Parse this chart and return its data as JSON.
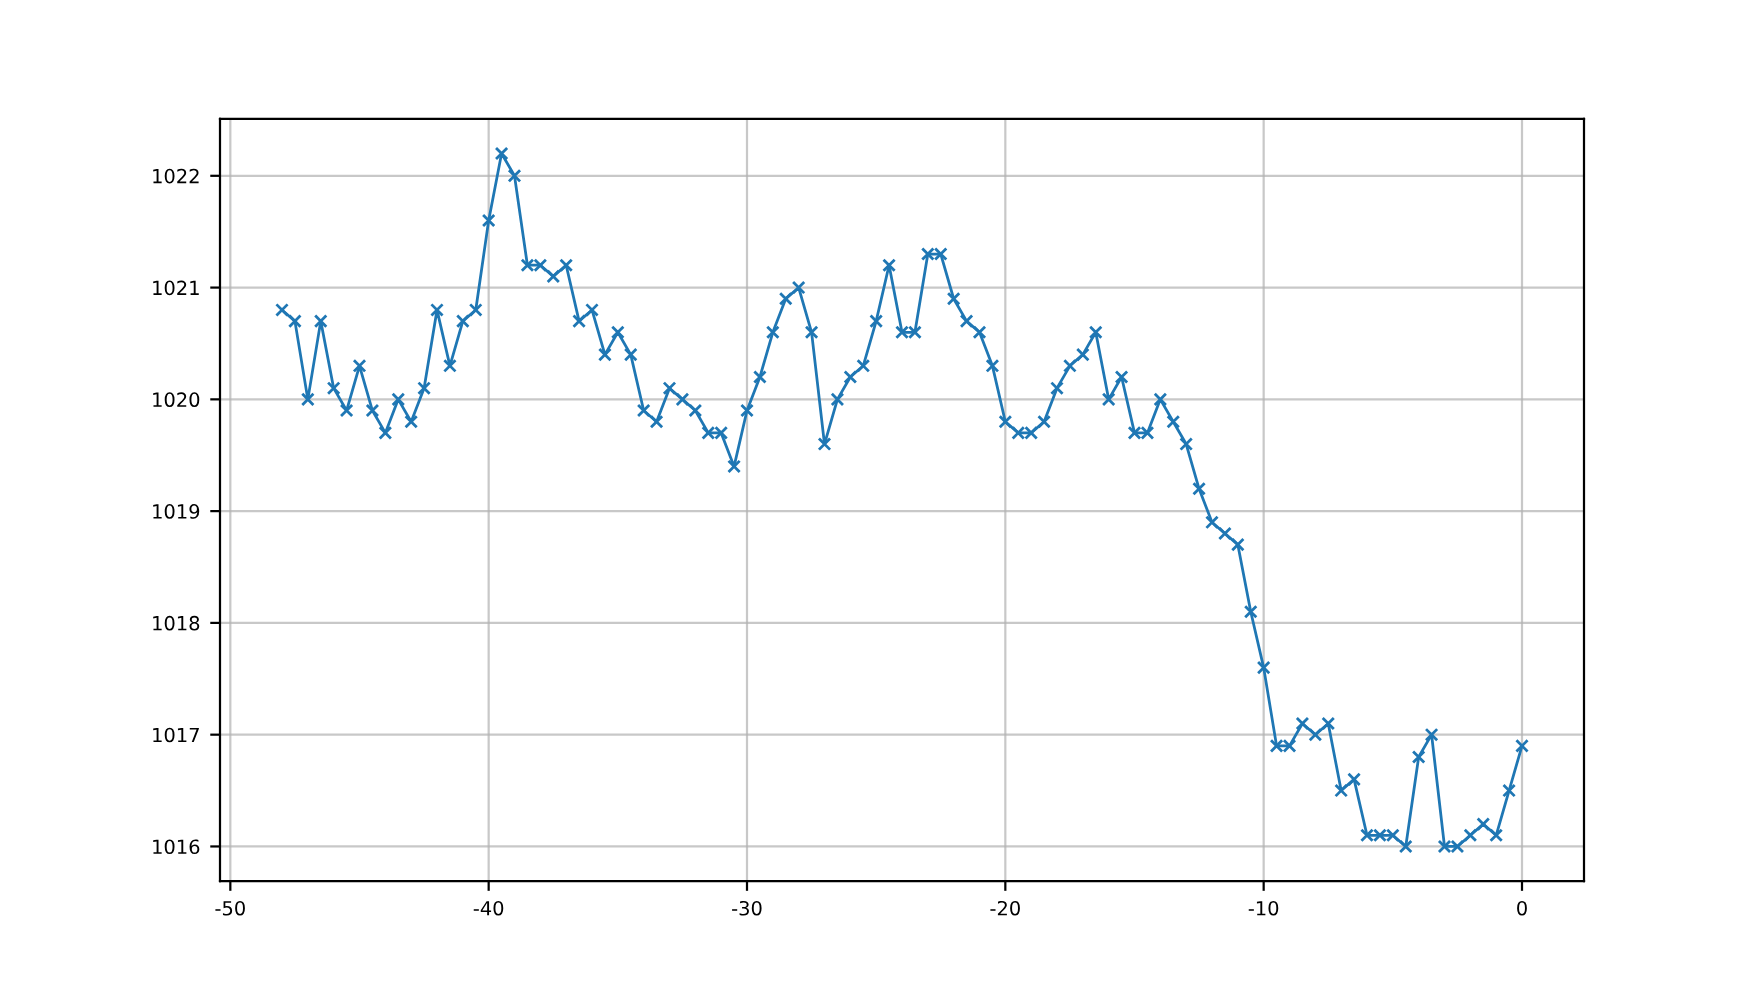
{
  "chart_data": {
    "type": "line",
    "color": "#1f77b4",
    "marker": "cross",
    "line_style": "solid",
    "grid": true,
    "x": [
      -48,
      -47.5,
      -47,
      -46.5,
      -46,
      -45.5,
      -45,
      -44.5,
      -44,
      -43.5,
      -43,
      -42.5,
      -42,
      -41.5,
      -41,
      -40.5,
      -40,
      -39.5,
      -39,
      -38.5,
      -38,
      -37.5,
      -37,
      -36.5,
      -36,
      -35.5,
      -35,
      -34.5,
      -34,
      -33.5,
      -33,
      -32.5,
      -32,
      -31.5,
      -31,
      -30.5,
      -30,
      -29.5,
      -29,
      -28.5,
      -28,
      -27.5,
      -27,
      -26.5,
      -26,
      -25.5,
      -25,
      -24.5,
      -24,
      -23.5,
      -23,
      -22.5,
      -22,
      -21.5,
      -21,
      -20.5,
      -20,
      -19.5,
      -19,
      -18.5,
      -18,
      -17.5,
      -17,
      -16.5,
      -16,
      -15.5,
      -15,
      -14.5,
      -14,
      -13.5,
      -13,
      -12.5,
      -12,
      -11.5,
      -11,
      -10.5,
      -10,
      -9.5,
      -9,
      -8.5,
      -8,
      -7.5,
      -7,
      -6.5,
      -6,
      -5.5,
      -5,
      -4.5,
      -4,
      -3.5,
      -3,
      -2.5,
      -2,
      -1.5,
      -1,
      -0.5,
      0
    ],
    "values": [
      1020.8,
      1020.7,
      1020.0,
      1020.7,
      1020.1,
      1019.9,
      1020.3,
      1019.9,
      1019.7,
      1020.0,
      1019.8,
      1020.1,
      1020.8,
      1020.3,
      1020.7,
      1020.8,
      1021.6,
      1022.2,
      1022.0,
      1021.2,
      1021.2,
      1021.1,
      1021.2,
      1020.7,
      1020.8,
      1020.4,
      1020.6,
      1020.4,
      1019.9,
      1019.8,
      1020.1,
      1020.0,
      1019.9,
      1019.7,
      1019.7,
      1019.4,
      1019.9,
      1020.2,
      1020.6,
      1020.9,
      1021.0,
      1020.6,
      1019.6,
      1020.0,
      1020.2,
      1020.3,
      1020.7,
      1021.2,
      1020.6,
      1020.6,
      1021.3,
      1021.3,
      1020.9,
      1020.7,
      1020.6,
      1020.3,
      1019.8,
      1019.7,
      1019.7,
      1019.8,
      1020.1,
      1020.3,
      1020.4,
      1020.6,
      1020.0,
      1020.2,
      1019.7,
      1019.7,
      1020.0,
      1019.8,
      1019.6,
      1019.2,
      1018.9,
      1018.8,
      1018.7,
      1018.1,
      1017.6,
      1016.9,
      1016.9,
      1017.1,
      1017.0,
      1017.1,
      1016.5,
      1016.6,
      1016.1,
      1016.1,
      1016.1,
      1016.0,
      1016.8,
      1017.0,
      1016.0,
      1016.0,
      1016.1,
      1016.2,
      1016.1,
      1016.5,
      1016.9
    ],
    "xlim": [
      -50.4,
      2.4
    ],
    "xticks": [
      -50,
      -40,
      -30,
      -20,
      -10,
      0
    ],
    "ylim": [
      1015.69,
      1022.51
    ],
    "yticks": [
      1016,
      1017,
      1018,
      1019,
      1020,
      1021,
      1022
    ]
  }
}
